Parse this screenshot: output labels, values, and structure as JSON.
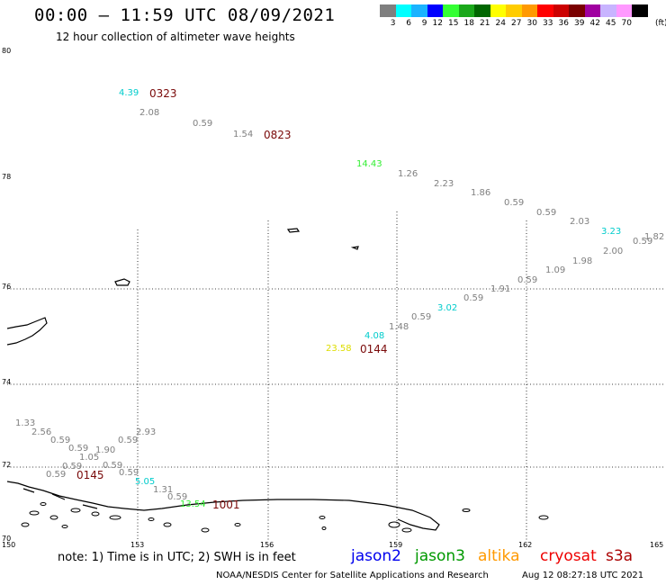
{
  "title": "00:00 – 11:59 UTC 08/09/2021",
  "subtitle": "12 hour collection of altimeter wave heights",
  "color_scale": {
    "colors": [
      "#7f7f7f",
      "#00ffff",
      "#1ab3ff",
      "#0000ff",
      "#33ff33",
      "#1aa81a",
      "#006600",
      "#ffff00",
      "#ffcc00",
      "#ff9900",
      "#ff0000",
      "#cc0000",
      "#7a0000",
      "#a000a0",
      "#c8b4ff",
      "#ff99ff",
      "#000000"
    ],
    "ticks": [
      "3",
      "6",
      "9",
      "12",
      "15",
      "18",
      "21",
      "24",
      "27",
      "30",
      "33",
      "36",
      "39",
      "42",
      "45",
      "70"
    ],
    "unit": "(ft)"
  },
  "lat_labels": [
    "80",
    "78",
    "76",
    "74",
    "72",
    "70"
  ],
  "lon_labels": [
    "150",
    "153",
    "156",
    "159",
    "162",
    "165"
  ],
  "tracks": [
    {
      "name": "northern-track",
      "labels": [
        {
          "text": "4.39",
          "color": "#00cccc"
        },
        {
          "text": "2.08",
          "color": "#808080"
        },
        {
          "text": "0.59",
          "color": "#808080"
        },
        {
          "text": "1.54",
          "color": "#808080"
        },
        {
          "text": "14.43",
          "color": "#33ee33"
        },
        {
          "text": "1.26",
          "color": "#808080"
        },
        {
          "text": "2.23",
          "color": "#808080"
        },
        {
          "text": "1.86",
          "color": "#808080"
        },
        {
          "text": "0.59",
          "color": "#808080"
        },
        {
          "text": "0.59",
          "color": "#808080"
        },
        {
          "text": "2.03",
          "color": "#808080"
        },
        {
          "text": "3.23",
          "color": "#00cccc"
        },
        {
          "text": "1.82",
          "color": "#808080"
        },
        {
          "text": "0.59",
          "color": "#808080"
        },
        {
          "text": "2.00",
          "color": "#808080"
        }
      ]
    },
    {
      "name": "middle-track",
      "labels": [
        {
          "text": "1.98",
          "color": "#808080"
        },
        {
          "text": "1.09",
          "color": "#808080"
        },
        {
          "text": "0.59",
          "color": "#808080"
        },
        {
          "text": "1.91",
          "color": "#808080"
        },
        {
          "text": "0.59",
          "color": "#808080"
        },
        {
          "text": "3.02",
          "color": "#00cccc"
        },
        {
          "text": "0.59",
          "color": "#808080"
        },
        {
          "text": "1.48",
          "color": "#808080"
        },
        {
          "text": "4.08",
          "color": "#00cccc"
        },
        {
          "text": "23.58",
          "color": "#dddd00"
        }
      ]
    },
    {
      "name": "southern-track",
      "labels": [
        {
          "text": "1.33",
          "color": "#808080"
        },
        {
          "text": "2.56",
          "color": "#808080"
        },
        {
          "text": "0.59",
          "color": "#808080"
        },
        {
          "text": "0.59",
          "color": "#808080"
        },
        {
          "text": "1.90",
          "color": "#808080"
        },
        {
          "text": "1.05",
          "color": "#808080"
        },
        {
          "text": "0.59",
          "color": "#808080"
        },
        {
          "text": "0.59",
          "color": "#808080"
        },
        {
          "text": "2.93",
          "color": "#808080"
        },
        {
          "text": "0.59",
          "color": "#808080"
        },
        {
          "text": "0.59",
          "color": "#808080"
        },
        {
          "text": "0.59",
          "color": "#808080"
        },
        {
          "text": "5.05",
          "color": "#00cccc"
        },
        {
          "text": "1.31",
          "color": "#808080"
        },
        {
          "text": "0.59",
          "color": "#808080"
        },
        {
          "text": "13.54",
          "color": "#33ee33"
        }
      ]
    }
  ],
  "times": [
    "0323",
    "0823",
    "0144",
    "0145",
    "1001"
  ],
  "note": "note:  1) Time is in UTC;  2) SWH is in feet",
  "satellites": [
    {
      "name": "jason2",
      "color": "#0000ee"
    },
    {
      "name": "jason3",
      "color": "#009900"
    },
    {
      "name": "altika",
      "color": "#ff9900"
    },
    {
      "name": "cryosat",
      "color": "#ee0000"
    },
    {
      "name": "s3a",
      "color": "#aa0000"
    }
  ],
  "credit": "NOAA/NESDIS Center for Satellite Applications and Research",
  "timestamp": "Aug 12 08:27:18 UTC 2021"
}
